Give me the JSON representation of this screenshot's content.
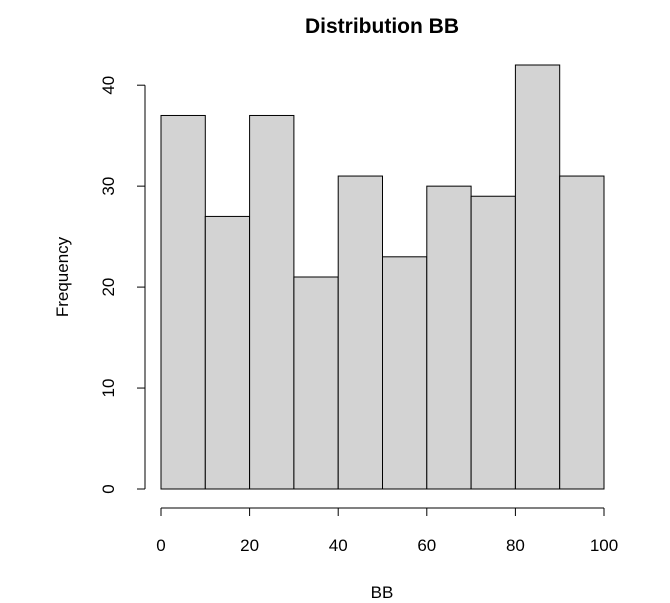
{
  "chart_data": {
    "type": "bar",
    "title": "Distribution BB",
    "xlabel": "BB",
    "ylabel": "Frequency",
    "bins": [
      {
        "from": 0,
        "to": 10,
        "count": 37
      },
      {
        "from": 10,
        "to": 20,
        "count": 27
      },
      {
        "from": 20,
        "to": 30,
        "count": 37
      },
      {
        "from": 30,
        "to": 40,
        "count": 21
      },
      {
        "from": 40,
        "to": 50,
        "count": 31
      },
      {
        "from": 50,
        "to": 60,
        "count": 23
      },
      {
        "from": 60,
        "to": 70,
        "count": 30
      },
      {
        "from": 70,
        "to": 80,
        "count": 29
      },
      {
        "from": 80,
        "to": 90,
        "count": 42
      },
      {
        "from": 90,
        "to": 100,
        "count": 31
      }
    ],
    "xticks": [
      0,
      20,
      40,
      60,
      80,
      100
    ],
    "yticks": [
      0,
      10,
      20,
      30,
      40
    ],
    "xlim": [
      0,
      100
    ],
    "ylim": [
      0,
      42
    ],
    "grid": false,
    "bar_fill": "#d3d3d3",
    "bar_stroke": "#000000"
  }
}
